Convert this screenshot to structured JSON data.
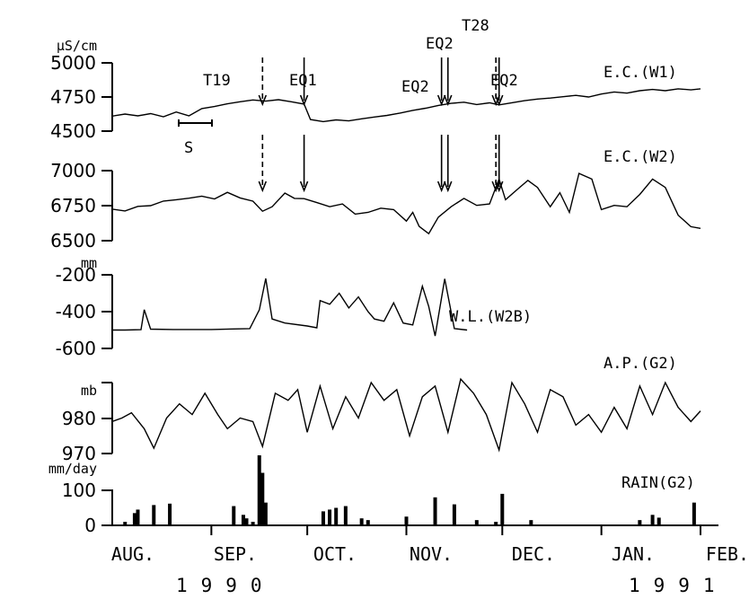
{
  "chart_data": {
    "type": "line",
    "x_range": [
      "1990-08-01",
      "1991-02-01"
    ],
    "months": [
      "AUG.",
      "SEP.",
      "OCT.",
      "NOV.",
      "DEC.",
      "JAN.",
      "FEB."
    ],
    "years": [
      "1990",
      "1991"
    ],
    "scale_bar_label": "S",
    "events": [
      {
        "label": "T19",
        "date": "1990-09-17",
        "style": "dashed",
        "panels": [
          "ec_w1",
          "ec_w2"
        ]
      },
      {
        "label": "EQ1",
        "date": "1990-09-30",
        "style": "solid",
        "panels": [
          "ec_w1",
          "ec_w2"
        ]
      },
      {
        "label": "EQ2",
        "date": "1990-11-12",
        "style": "solid",
        "panels": [
          "ec_w1",
          "ec_w2"
        ]
      },
      {
        "label": "EQ2",
        "date": "1990-11-14",
        "style": "solid",
        "panels": [
          "ec_w1",
          "ec_w2"
        ]
      },
      {
        "label": "T28",
        "date": "1990-11-29",
        "style": "dashed",
        "panels": [
          "ec_w1",
          "ec_w2"
        ]
      },
      {
        "label": "EQ2",
        "date": "1990-11-30",
        "style": "solid",
        "panels": [
          "ec_w1",
          "ec_w2"
        ]
      }
    ],
    "panels": [
      {
        "id": "ec_w1",
        "name": "E.C.(W1)",
        "unit": "µS/cm",
        "ylim": [
          4500,
          5000
        ],
        "yticks": [
          "5000",
          "4750",
          "4500"
        ],
        "points": [
          [
            "1990-08-01",
            4610
          ],
          [
            "1990-08-05",
            4625
          ],
          [
            "1990-08-09",
            4612
          ],
          [
            "1990-08-13",
            4628
          ],
          [
            "1990-08-17",
            4605
          ],
          [
            "1990-08-21",
            4640
          ],
          [
            "1990-08-25",
            4612
          ],
          [
            "1990-08-29",
            4665
          ],
          [
            "1990-09-02",
            4680
          ],
          [
            "1990-09-06",
            4700
          ],
          [
            "1990-09-10",
            4715
          ],
          [
            "1990-09-14",
            4728
          ],
          [
            "1990-09-18",
            4720
          ],
          [
            "1990-09-22",
            4730
          ],
          [
            "1990-09-26",
            4715
          ],
          [
            "1990-09-30",
            4698
          ],
          [
            "1990-10-02",
            4585
          ],
          [
            "1990-10-06",
            4570
          ],
          [
            "1990-10-10",
            4582
          ],
          [
            "1990-10-14",
            4575
          ],
          [
            "1990-10-18",
            4590
          ],
          [
            "1990-10-22",
            4603
          ],
          [
            "1990-10-26",
            4615
          ],
          [
            "1990-10-30",
            4632
          ],
          [
            "1990-11-03",
            4652
          ],
          [
            "1990-11-07",
            4668
          ],
          [
            "1990-11-11",
            4688
          ],
          [
            "1990-11-15",
            4703
          ],
          [
            "1990-11-19",
            4712
          ],
          [
            "1990-11-23",
            4695
          ],
          [
            "1990-11-27",
            4707
          ],
          [
            "1990-11-30",
            4692
          ],
          [
            "1990-12-04",
            4708
          ],
          [
            "1990-12-08",
            4723
          ],
          [
            "1990-12-12",
            4735
          ],
          [
            "1990-12-16",
            4742
          ],
          [
            "1990-12-20",
            4752
          ],
          [
            "1990-12-24",
            4762
          ],
          [
            "1990-12-28",
            4750
          ],
          [
            "1991-01-01",
            4772
          ],
          [
            "1991-01-05",
            4787
          ],
          [
            "1991-01-09",
            4778
          ],
          [
            "1991-01-13",
            4796
          ],
          [
            "1991-01-17",
            4805
          ],
          [
            "1991-01-21",
            4796
          ],
          [
            "1991-01-25",
            4810
          ],
          [
            "1991-01-29",
            4802
          ],
          [
            "1991-02-01",
            4810
          ]
        ]
      },
      {
        "id": "ec_w2",
        "name": "E.C.(W2)",
        "unit": "",
        "ylim": [
          6500,
          7000
        ],
        "yticks": [
          "7000",
          "6750",
          "6500"
        ],
        "points": [
          [
            "1990-08-01",
            6725
          ],
          [
            "1990-08-05",
            6712
          ],
          [
            "1990-08-09",
            6745
          ],
          [
            "1990-08-13",
            6750
          ],
          [
            "1990-08-17",
            6783
          ],
          [
            "1990-08-21",
            6792
          ],
          [
            "1990-08-25",
            6803
          ],
          [
            "1990-08-29",
            6818
          ],
          [
            "1990-09-02",
            6798
          ],
          [
            "1990-09-06",
            6845
          ],
          [
            "1990-09-10",
            6805
          ],
          [
            "1990-09-14",
            6782
          ],
          [
            "1990-09-17",
            6710
          ],
          [
            "1990-09-20",
            6742
          ],
          [
            "1990-09-24",
            6840
          ],
          [
            "1990-09-27",
            6802
          ],
          [
            "1990-09-30",
            6800
          ],
          [
            "1990-10-04",
            6772
          ],
          [
            "1990-10-08",
            6742
          ],
          [
            "1990-10-12",
            6762
          ],
          [
            "1990-10-16",
            6690
          ],
          [
            "1990-10-20",
            6702
          ],
          [
            "1990-10-24",
            6732
          ],
          [
            "1990-10-28",
            6722
          ],
          [
            "1990-11-01",
            6640
          ],
          [
            "1990-11-03",
            6702
          ],
          [
            "1990-11-05",
            6602
          ],
          [
            "1990-11-08",
            6550
          ],
          [
            "1990-11-11",
            6668
          ],
          [
            "1990-11-15",
            6742
          ],
          [
            "1990-11-19",
            6802
          ],
          [
            "1990-11-23",
            6752
          ],
          [
            "1990-11-27",
            6762
          ],
          [
            "1990-11-30",
            6940
          ],
          [
            "1990-12-02",
            6792
          ],
          [
            "1990-12-06",
            6872
          ],
          [
            "1990-12-09",
            6930
          ],
          [
            "1990-12-12",
            6880
          ],
          [
            "1990-12-16",
            6742
          ],
          [
            "1990-12-19",
            6842
          ],
          [
            "1990-12-22",
            6702
          ],
          [
            "1990-12-25",
            6980
          ],
          [
            "1990-12-29",
            6940
          ],
          [
            "1991-01-01",
            6722
          ],
          [
            "1991-01-05",
            6752
          ],
          [
            "1991-01-09",
            6742
          ],
          [
            "1991-01-13",
            6830
          ],
          [
            "1991-01-17",
            6940
          ],
          [
            "1991-01-21",
            6880
          ],
          [
            "1991-01-25",
            6682
          ],
          [
            "1991-01-29",
            6600
          ],
          [
            "1991-02-01",
            6588
          ]
        ]
      },
      {
        "id": "wl_w2b",
        "name": "W.L.(W2B)",
        "unit": "mm",
        "ylim": [
          -600,
          -200
        ],
        "yticks": [
          "-200",
          "-400",
          "-600"
        ],
        "points": [
          [
            "1990-08-01",
            -500
          ],
          [
            "1990-08-05",
            -500
          ],
          [
            "1990-08-10",
            -498
          ],
          [
            "1990-08-11",
            -390
          ],
          [
            "1990-08-13",
            -495
          ],
          [
            "1990-08-20",
            -497
          ],
          [
            "1990-09-01",
            -497
          ],
          [
            "1990-09-13",
            -492
          ],
          [
            "1990-09-16",
            -390
          ],
          [
            "1990-09-18",
            -220
          ],
          [
            "1990-09-20",
            -440
          ],
          [
            "1990-09-24",
            -462
          ],
          [
            "1990-10-01",
            -478
          ],
          [
            "1990-10-04",
            -488
          ],
          [
            "1990-10-05",
            -340
          ],
          [
            "1990-10-08",
            -360
          ],
          [
            "1990-10-11",
            -300
          ],
          [
            "1990-10-14",
            -380
          ],
          [
            "1990-10-17",
            -320
          ],
          [
            "1990-10-20",
            -400
          ],
          [
            "1990-10-22",
            -440
          ],
          [
            "1990-10-25",
            -452
          ],
          [
            "1990-10-28",
            -352
          ],
          [
            "1990-10-31",
            -462
          ],
          [
            "1990-11-03",
            -472
          ],
          [
            "1990-11-06",
            -262
          ],
          [
            "1990-11-08",
            -372
          ],
          [
            "1990-11-10",
            -532
          ],
          [
            "1990-11-13",
            -222
          ],
          [
            "1990-11-16",
            -492
          ],
          [
            "1990-11-20",
            -500
          ]
        ]
      },
      {
        "id": "ap_g2",
        "name": "A.P.(G2)",
        "unit": "mb",
        "ylim": [
          970,
          990
        ],
        "yticks": [
          "",
          "980",
          "970"
        ],
        "points": [
          [
            "1990-08-01",
            979
          ],
          [
            "1990-08-04",
            980
          ],
          [
            "1990-08-07",
            981.5
          ],
          [
            "1990-08-11",
            977
          ],
          [
            "1990-08-14",
            971.5
          ],
          [
            "1990-08-18",
            980
          ],
          [
            "1990-08-22",
            984
          ],
          [
            "1990-08-26",
            981
          ],
          [
            "1990-08-30",
            987
          ],
          [
            "1990-09-03",
            981
          ],
          [
            "1990-09-06",
            977
          ],
          [
            "1990-09-10",
            980
          ],
          [
            "1990-09-14",
            979
          ],
          [
            "1990-09-17",
            972
          ],
          [
            "1990-09-21",
            987
          ],
          [
            "1990-09-25",
            985
          ],
          [
            "1990-09-28",
            988
          ],
          [
            "1990-10-01",
            976
          ],
          [
            "1990-10-05",
            989
          ],
          [
            "1990-10-09",
            977
          ],
          [
            "1990-10-13",
            986
          ],
          [
            "1990-10-17",
            980
          ],
          [
            "1990-10-21",
            990
          ],
          [
            "1990-10-25",
            985
          ],
          [
            "1990-10-29",
            988
          ],
          [
            "1990-11-02",
            975
          ],
          [
            "1990-11-06",
            986
          ],
          [
            "1990-11-10",
            989
          ],
          [
            "1990-11-14",
            976
          ],
          [
            "1990-11-18",
            991
          ],
          [
            "1990-11-22",
            987
          ],
          [
            "1990-11-26",
            981
          ],
          [
            "1990-11-30",
            971
          ],
          [
            "1990-12-04",
            990
          ],
          [
            "1990-12-08",
            984
          ],
          [
            "1990-12-12",
            976
          ],
          [
            "1990-12-16",
            988
          ],
          [
            "1990-12-20",
            986
          ],
          [
            "1990-12-24",
            978
          ],
          [
            "1990-12-28",
            981
          ],
          [
            "1991-01-01",
            976
          ],
          [
            "1991-01-05",
            983
          ],
          [
            "1991-01-09",
            977
          ],
          [
            "1991-01-13",
            989
          ],
          [
            "1991-01-17",
            981
          ],
          [
            "1991-01-21",
            990
          ],
          [
            "1991-01-25",
            983
          ],
          [
            "1991-01-29",
            979
          ],
          [
            "1991-02-01",
            982
          ]
        ]
      },
      {
        "id": "rain_g2",
        "name": "RAIN(G2)",
        "unit": "mm/day",
        "ylim": [
          0,
          100
        ],
        "yticks": [
          "100",
          "0"
        ],
        "points": [
          [
            "1990-08-05",
            10
          ],
          [
            "1990-08-08",
            35
          ],
          [
            "1990-08-09",
            45
          ],
          [
            "1990-08-14",
            58
          ],
          [
            "1990-08-19",
            62
          ],
          [
            "1990-09-08",
            55
          ],
          [
            "1990-09-11",
            30
          ],
          [
            "1990-09-12",
            20
          ],
          [
            "1990-09-14",
            10
          ],
          [
            "1990-09-16",
            200
          ],
          [
            "1990-09-17",
            150
          ],
          [
            "1990-09-18",
            65
          ],
          [
            "1990-10-06",
            40
          ],
          [
            "1990-10-08",
            45
          ],
          [
            "1990-10-10",
            50
          ],
          [
            "1990-10-13",
            55
          ],
          [
            "1990-10-18",
            20
          ],
          [
            "1990-10-20",
            15
          ],
          [
            "1990-11-01",
            25
          ],
          [
            "1990-11-10",
            80
          ],
          [
            "1990-11-16",
            60
          ],
          [
            "1990-11-23",
            15
          ],
          [
            "1990-11-29",
            10
          ],
          [
            "1990-12-01",
            90
          ],
          [
            "1990-12-10",
            15
          ],
          [
            "1991-01-13",
            15
          ],
          [
            "1991-01-17",
            30
          ],
          [
            "1991-01-19",
            22
          ],
          [
            "1991-01-30",
            65
          ]
        ]
      }
    ]
  }
}
